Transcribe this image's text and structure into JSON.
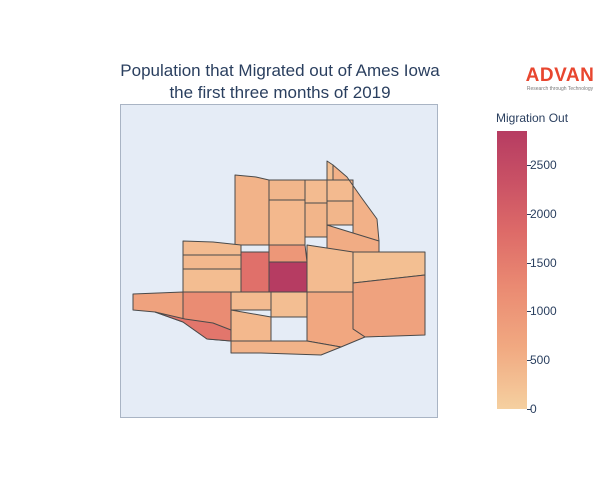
{
  "title": {
    "line1": "Population that Migrated out of Ames Iowa",
    "line2": "the first three months of 2019"
  },
  "logo": {
    "word": "ADVAN",
    "tagline": "Research through Technology",
    "color": "#e8462f"
  },
  "colorbar": {
    "title": "Migration Out",
    "min": 0,
    "max": 2850,
    "ticks": [
      "0",
      "500",
      "1000",
      "1500",
      "2000",
      "2500"
    ],
    "tick_values": [
      0,
      500,
      1000,
      1500,
      2000,
      2500
    ],
    "colorscale": [
      "#f5d0a0",
      "#f1a981",
      "#ea8a72",
      "#dd6a68",
      "#c95165",
      "#b63c62"
    ]
  },
  "map": {
    "background": "#e5ecf6",
    "border_color": "#4a4a4a",
    "regions": [
      {
        "name": "tract-far-nw",
        "value": 420
      },
      {
        "name": "tract-north-1",
        "value": 380
      },
      {
        "name": "tract-north-2",
        "value": 300
      },
      {
        "name": "tract-north-3",
        "value": 250
      },
      {
        "name": "tract-north-4",
        "value": 320
      },
      {
        "name": "tract-ne-east",
        "value": 450
      },
      {
        "name": "tract-mid-1",
        "value": 350
      },
      {
        "name": "tract-mid-2",
        "value": 400
      },
      {
        "name": "tract-mid-3",
        "value": 380
      },
      {
        "name": "tract-mid-4",
        "value": 520
      },
      {
        "name": "tract-west-1",
        "value": 300
      },
      {
        "name": "tract-west-2",
        "value": 280
      },
      {
        "name": "tract-west-3",
        "value": 350
      },
      {
        "name": "tract-center-left",
        "value": 1600
      },
      {
        "name": "tract-center-peak",
        "value": 2850
      },
      {
        "name": "tract-center-right",
        "value": 900
      },
      {
        "name": "tract-east-upper",
        "value": 300
      },
      {
        "name": "tract-east-far",
        "value": 250
      },
      {
        "name": "tract-southwest-west",
        "value": 700
      },
      {
        "name": "tract-southwest-mid",
        "value": 1100
      },
      {
        "name": "tract-south-main",
        "value": 1500
      },
      {
        "name": "tract-south-center-1",
        "value": 300
      },
      {
        "name": "tract-south-center-2",
        "value": 260
      },
      {
        "name": "tract-south-center-3",
        "value": 350
      },
      {
        "name": "tract-southeast",
        "value": 700
      },
      {
        "name": "tract-east-mid",
        "value": 600
      },
      {
        "name": "tract-east-small",
        "value": 420
      }
    ]
  }
}
